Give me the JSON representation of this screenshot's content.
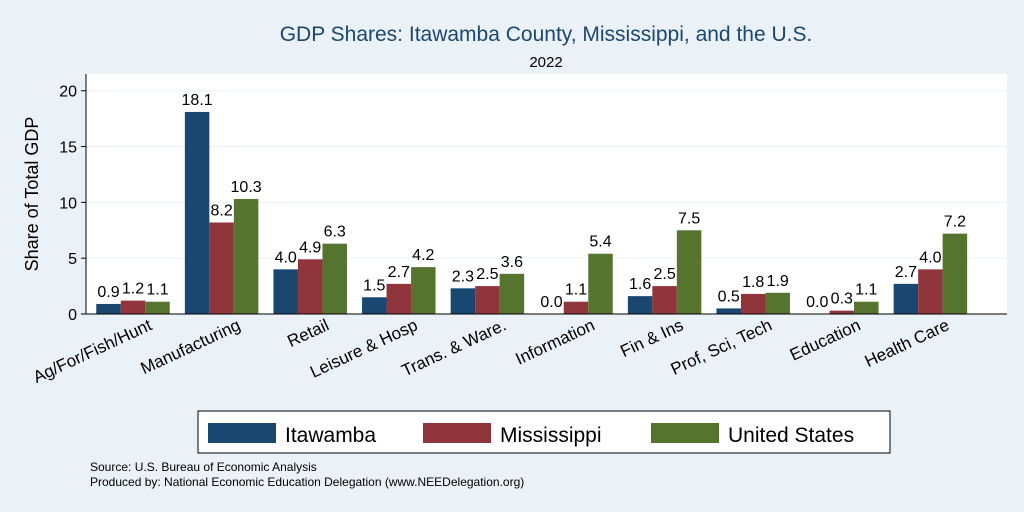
{
  "chart_data": {
    "type": "bar",
    "title": "GDP Shares: Itawamba County, Mississippi, and the U.S.",
    "subtitle": "2022",
    "ylabel": "Share of Total GDP",
    "xlabel": "",
    "ylim": [
      0,
      21.5
    ],
    "yticks": [
      0,
      5,
      10,
      15,
      20
    ],
    "grid": true,
    "legend_position": "bottom",
    "categories": [
      "Ag/For/Fish/Hunt",
      "Manufacturing",
      "Retail",
      "Leisure & Hosp",
      "Trans. & Ware.",
      "Information",
      "Fin & Ins",
      "Prof, Sci, Tech",
      "Education",
      "Health Care"
    ],
    "series": [
      {
        "name": "Itawamba",
        "color": "#1a476f",
        "values": [
          0.9,
          18.1,
          4.0,
          1.5,
          2.3,
          0.0,
          1.6,
          0.5,
          0.0,
          2.7
        ],
        "labels": [
          "0.9",
          "18.1",
          "4.0",
          "1.5",
          "2.3",
          "0.0",
          "1.6",
          "0.5",
          "0.0",
          "2.7"
        ]
      },
      {
        "name": "Mississippi",
        "color": "#90353b",
        "values": [
          1.2,
          8.2,
          4.9,
          2.7,
          2.5,
          1.1,
          2.5,
          1.8,
          0.3,
          4.0
        ],
        "labels": [
          "1.2",
          "8.2",
          "4.9",
          "2.7",
          "2.5",
          "1.1",
          "2.5",
          "1.8",
          "0.3",
          "4.0"
        ]
      },
      {
        "name": "United States",
        "color": "#55752f",
        "values": [
          1.1,
          10.3,
          6.3,
          4.2,
          3.6,
          5.4,
          7.5,
          1.9,
          1.1,
          7.2
        ],
        "labels": [
          "1.1",
          "10.3",
          "6.3",
          "4.2",
          "3.6",
          "5.4",
          "7.5",
          "1.9",
          "1.1",
          "7.2"
        ]
      }
    ]
  },
  "footer": {
    "source": "Source: U.S. Bureau of Economic Analysis",
    "produced_by": "Produced by: National Economic Education Delegation (www.NEEDelegation.org)"
  }
}
